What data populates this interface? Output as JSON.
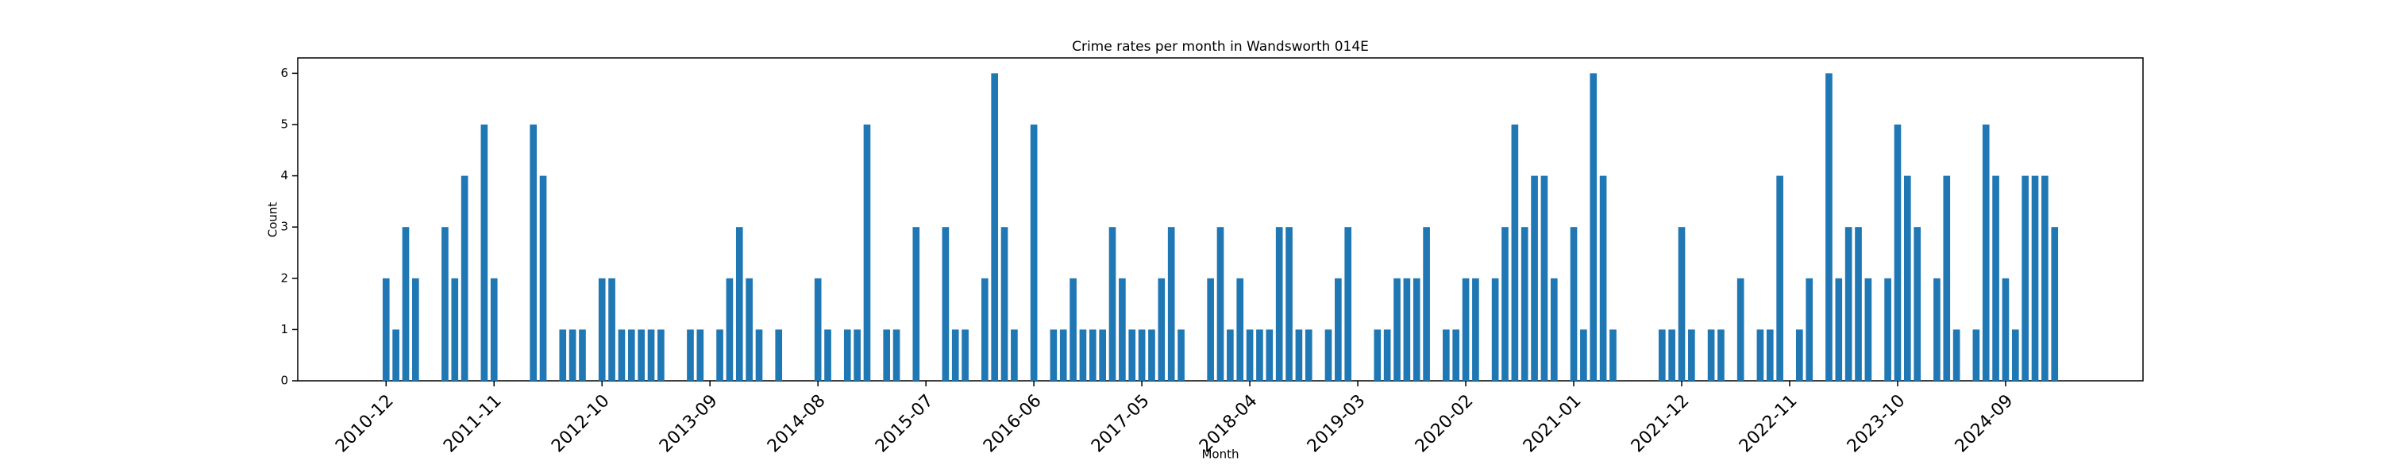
{
  "chart_data": {
    "type": "bar",
    "title": "Crime rates per month in Wandsworth 014E",
    "x_label": "Month",
    "y_label": "Count",
    "color": "#1f77b4",
    "x": [
      "2010-12",
      "2011-01",
      "2011-02",
      "2011-03",
      "2011-06",
      "2011-07",
      "2011-08",
      "2011-10",
      "2011-11",
      "2012-03",
      "2012-04",
      "2012-06",
      "2012-07",
      "2012-08",
      "2012-10",
      "2012-11",
      "2012-12",
      "2013-01",
      "2013-02",
      "2013-03",
      "2013-04",
      "2013-07",
      "2013-08",
      "2013-10",
      "2013-11",
      "2013-12",
      "2014-01",
      "2014-02",
      "2014-04",
      "2014-08",
      "2014-09",
      "2014-11",
      "2014-12",
      "2015-01",
      "2015-03",
      "2015-04",
      "2015-06",
      "2015-09",
      "2015-10",
      "2015-11",
      "2016-01",
      "2016-02",
      "2016-03",
      "2016-04",
      "2016-06",
      "2016-08",
      "2016-09",
      "2016-10",
      "2016-11",
      "2016-12",
      "2017-01",
      "2017-02",
      "2017-03",
      "2017-04",
      "2017-05",
      "2017-06",
      "2017-07",
      "2017-08",
      "2017-09",
      "2017-12",
      "2018-01",
      "2018-02",
      "2018-03",
      "2018-04",
      "2018-05",
      "2018-06",
      "2018-07",
      "2018-08",
      "2018-09",
      "2018-10",
      "2018-12",
      "2019-01",
      "2019-02",
      "2019-05",
      "2019-06",
      "2019-07",
      "2019-08",
      "2019-09",
      "2019-10",
      "2019-12",
      "2020-01",
      "2020-02",
      "2020-03",
      "2020-05",
      "2020-06",
      "2020-07",
      "2020-08",
      "2020-09",
      "2020-10",
      "2020-11",
      "2021-01",
      "2021-02",
      "2021-03",
      "2021-04",
      "2021-05",
      "2021-10",
      "2021-11",
      "2021-12",
      "2022-01",
      "2022-03",
      "2022-04",
      "2022-06",
      "2022-08",
      "2022-09",
      "2022-10",
      "2022-12",
      "2023-01",
      "2023-03",
      "2023-04",
      "2023-05",
      "2023-06",
      "2023-07",
      "2023-09",
      "2023-10",
      "2023-11",
      "2023-12",
      "2024-02",
      "2024-03",
      "2024-04",
      "2024-06",
      "2024-07",
      "2024-08",
      "2024-09",
      "2024-10",
      "2024-11",
      "2024-12",
      "2025-01",
      "2025-02"
    ],
    "values": [
      2,
      1,
      3,
      2,
      3,
      2,
      4,
      5,
      2,
      5,
      4,
      1,
      1,
      1,
      2,
      2,
      1,
      1,
      1,
      1,
      1,
      1,
      1,
      1,
      2,
      3,
      2,
      1,
      1,
      2,
      1,
      1,
      1,
      5,
      1,
      1,
      3,
      3,
      1,
      1,
      2,
      6,
      3,
      1,
      5,
      1,
      1,
      2,
      1,
      1,
      1,
      3,
      2,
      1,
      1,
      1,
      2,
      3,
      1,
      2,
      3,
      1,
      2,
      1,
      1,
      1,
      3,
      3,
      1,
      1,
      1,
      2,
      3,
      1,
      1,
      2,
      2,
      2,
      3,
      1,
      1,
      2,
      2,
      2,
      3,
      5,
      3,
      4,
      4,
      2,
      3,
      1,
      6,
      4,
      1,
      1,
      1,
      3,
      1,
      1,
      1,
      2,
      1,
      1,
      4,
      1,
      2,
      6,
      2,
      3,
      3,
      2,
      2,
      5,
      4,
      3,
      2,
      4,
      1,
      1,
      5,
      4,
      2,
      1,
      4,
      4,
      4,
      3
    ],
    "xlim": [
      "2010-03",
      "2025-11"
    ],
    "xticks": [
      "2010-12",
      "2011-11",
      "2012-10",
      "2013-09",
      "2014-08",
      "2015-07",
      "2016-06",
      "2017-05",
      "2018-04",
      "2019-03",
      "2020-02",
      "2021-01",
      "2021-12",
      "2022-11",
      "2023-10",
      "2024-09"
    ],
    "ylim": [
      0,
      6.3
    ],
    "yticks": [
      0,
      1,
      2,
      3,
      4,
      5,
      6
    ],
    "grid": false
  }
}
